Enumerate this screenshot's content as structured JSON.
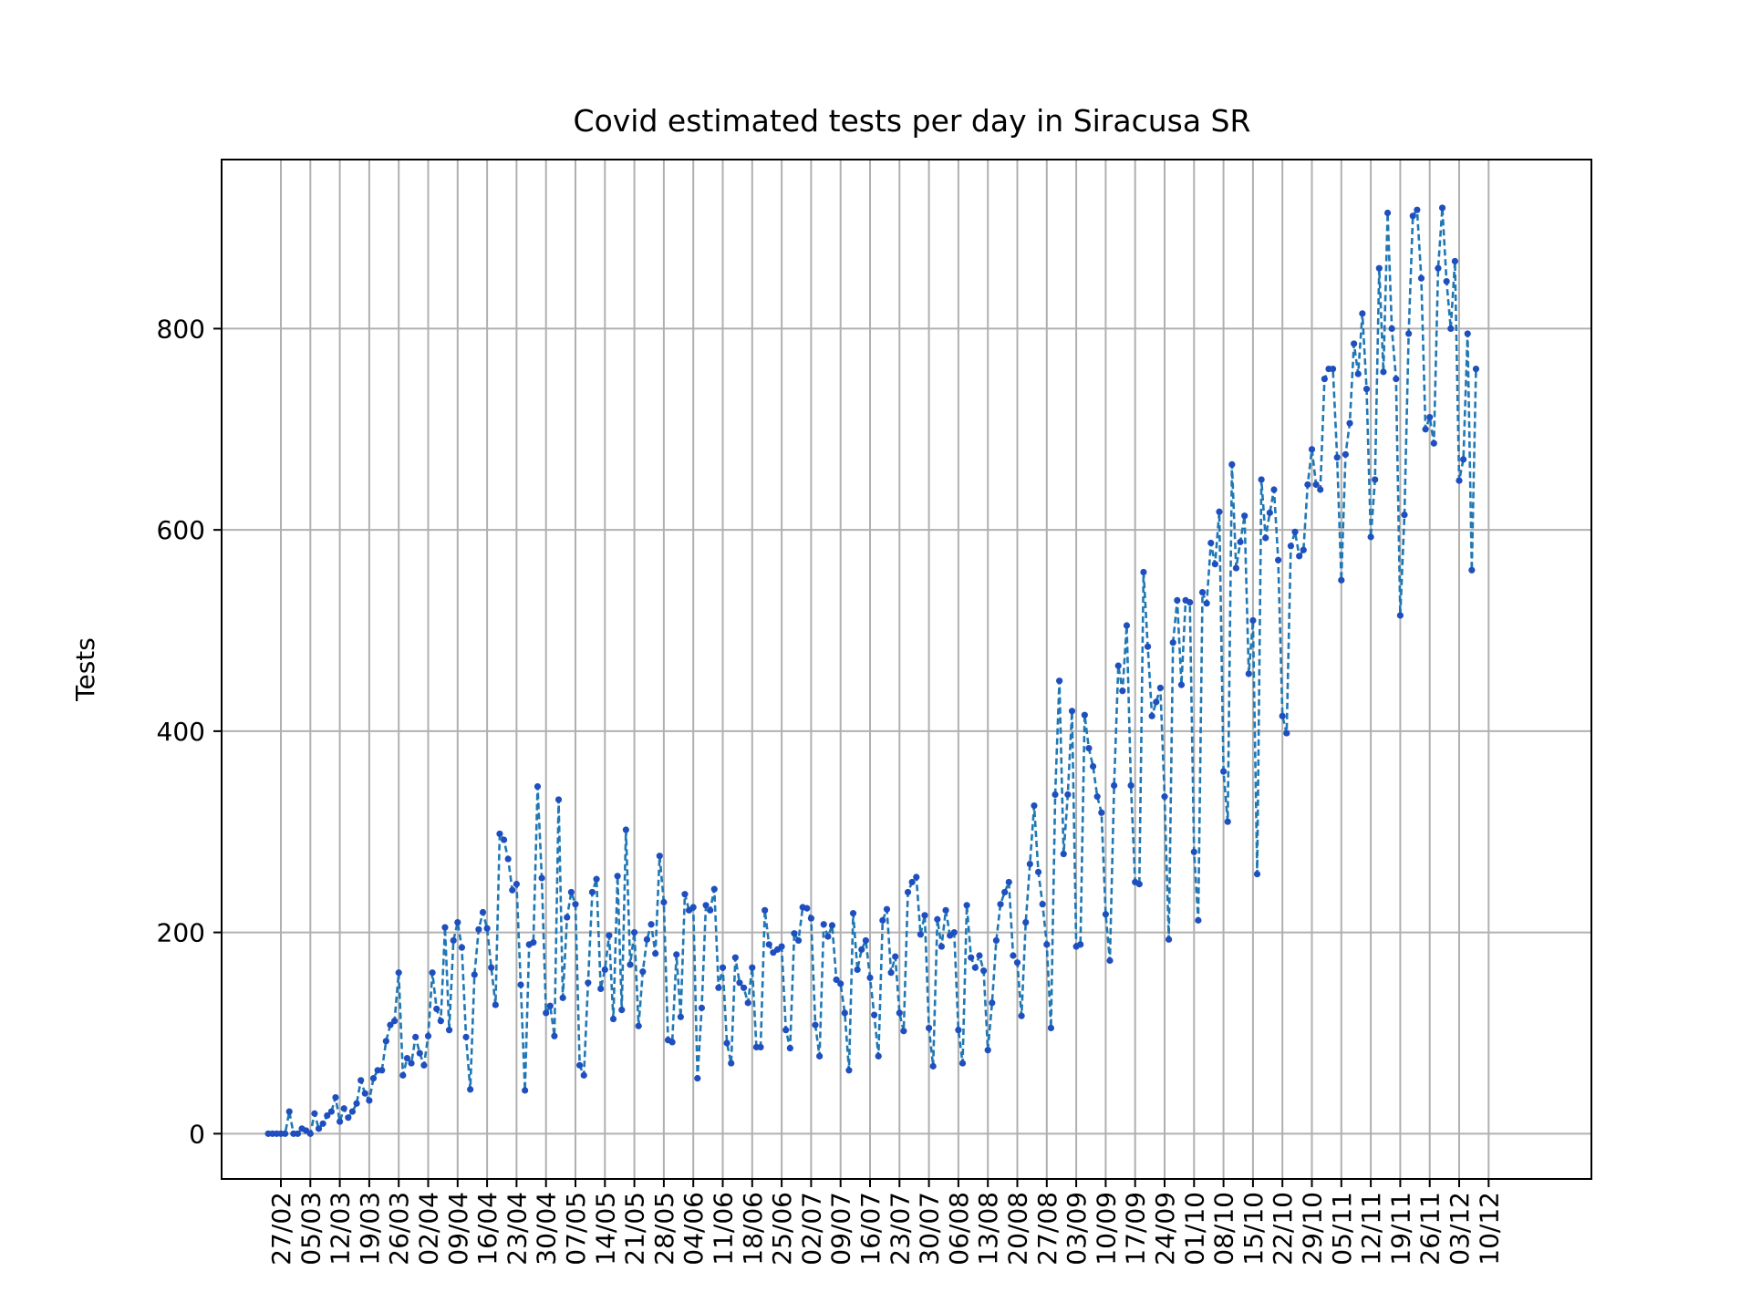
{
  "chart_data": {
    "type": "line",
    "title": "Covid estimated tests per day in Siracusa SR",
    "xlabel": "",
    "ylabel": "Tests",
    "ylim": [
      -45,
      968
    ],
    "yticks": [
      0,
      200,
      400,
      600,
      800
    ],
    "xtick_labels": [
      "27/02",
      "05/03",
      "12/03",
      "19/03",
      "26/03",
      "02/04",
      "09/04",
      "16/04",
      "23/04",
      "30/04",
      "07/05",
      "14/05",
      "21/05",
      "28/05",
      "04/06",
      "11/06",
      "18/06",
      "25/06",
      "02/07",
      "09/07",
      "16/07",
      "23/07",
      "30/07",
      "06/08",
      "13/08",
      "20/08",
      "27/08",
      "03/09",
      "10/09",
      "17/09",
      "24/09",
      "01/10",
      "08/10",
      "15/10",
      "22/10",
      "29/10",
      "05/11",
      "12/11",
      "19/11",
      "26/11",
      "03/12",
      "10/12"
    ],
    "grid": true,
    "line_style": "dashed",
    "marker": "dot",
    "color": "#1f77b4",
    "marker_color": "#1f4fbf",
    "series": [
      {
        "name": "",
        "x_start": "24/02",
        "values": [
          0,
          0,
          0,
          0,
          0,
          22,
          0,
          0,
          5,
          3,
          0,
          20,
          5,
          10,
          18,
          22,
          36,
          12,
          25,
          16,
          22,
          30,
          53,
          40,
          33,
          55,
          63,
          63,
          92,
          108,
          112,
          160,
          58,
          75,
          70,
          96,
          80,
          68,
          97,
          160,
          124,
          112,
          205,
          103,
          192,
          210,
          185,
          96,
          44,
          158,
          203,
          220,
          204,
          165,
          128,
          298,
          292,
          273,
          242,
          248,
          148,
          43,
          188,
          190,
          345,
          254,
          120,
          127,
          97,
          332,
          135,
          215,
          240,
          228,
          68,
          58,
          150,
          240,
          253,
          144,
          163,
          197,
          114,
          256,
          123,
          302,
          168,
          200,
          107,
          161,
          193,
          208,
          179,
          276,
          230,
          93,
          91,
          178,
          116,
          238,
          222,
          225,
          55,
          125,
          227,
          222,
          243,
          145,
          165,
          90,
          70,
          175,
          150,
          145,
          130,
          165,
          86,
          86,
          222,
          188,
          180,
          183,
          186,
          103,
          85,
          199,
          192,
          225,
          224,
          214,
          108,
          77,
          208,
          196,
          207,
          153,
          149,
          120,
          63,
          219,
          163,
          183,
          192,
          155,
          118,
          77,
          212,
          223,
          160,
          176,
          120,
          102,
          240,
          250,
          255,
          198,
          217,
          105,
          67,
          213,
          186,
          222,
          197,
          200,
          103,
          70,
          227,
          175,
          165,
          177,
          162,
          83,
          130,
          192,
          228,
          240,
          250,
          177,
          170,
          117,
          210,
          268,
          326,
          260,
          228,
          188,
          105,
          337,
          450,
          278,
          337,
          420,
          186,
          188,
          416,
          383,
          365,
          335,
          319,
          218,
          172,
          346,
          465,
          440,
          505,
          346,
          250,
          248,
          558,
          484,
          415,
          429,
          443,
          335,
          193,
          488,
          530,
          446,
          530,
          528,
          280,
          212,
          538,
          527,
          587,
          566,
          618,
          360,
          310,
          665,
          562,
          588,
          614,
          457,
          510,
          258,
          650,
          592,
          617,
          640,
          570,
          415,
          398,
          584,
          598,
          574,
          580,
          645,
          680,
          645,
          640,
          750,
          760,
          760,
          672,
          550,
          675,
          706,
          785,
          755,
          815,
          740,
          593,
          650,
          860,
          757,
          915,
          800,
          750,
          515,
          615,
          795,
          912,
          918,
          850,
          700,
          712,
          686,
          860,
          920,
          847,
          800,
          867,
          649,
          670,
          795,
          560,
          760
        ]
      }
    ]
  }
}
